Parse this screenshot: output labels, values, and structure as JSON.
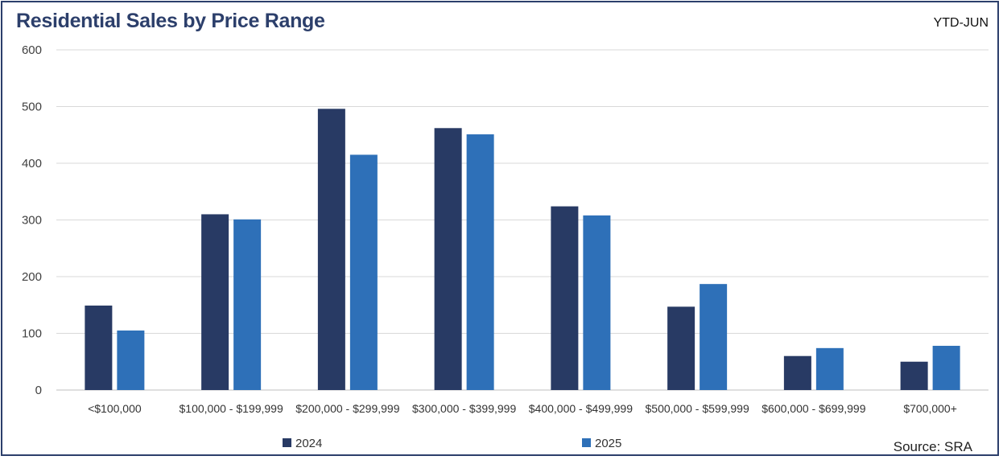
{
  "header": {
    "title": "Residential Sales by Price Range",
    "period": "YTD-JUN",
    "source": "Source: SRA"
  },
  "chart_data": {
    "type": "bar",
    "title": "Residential Sales by Price Range",
    "xlabel": "",
    "ylabel": "",
    "ylim": [
      0,
      600
    ],
    "yticks": [
      0,
      100,
      200,
      300,
      400,
      500,
      600
    ],
    "grid": true,
    "legend_position": "bottom",
    "categories": [
      "<$100,000",
      "$100,000 - $199,999",
      "$200,000 - $299,999",
      "$300,000 - $399,999",
      "$400,000 - $499,999",
      "$500,000 - $599,999",
      "$600,000 - $699,999",
      "$700,000+"
    ],
    "series": [
      {
        "name": "2024",
        "color": "#283a64",
        "values": [
          149,
          310,
          496,
          462,
          324,
          147,
          60,
          50
        ]
      },
      {
        "name": "2025",
        "color": "#2e70b8",
        "values": [
          105,
          301,
          415,
          451,
          308,
          187,
          74,
          78
        ]
      }
    ]
  }
}
